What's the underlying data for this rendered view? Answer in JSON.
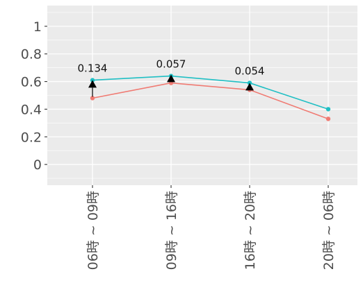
{
  "chart_data": {
    "type": "line",
    "categories": [
      "06時 ~ 09時",
      "09時 ~ 16時",
      "16時 ~ 20時",
      "20時 ~ 06時"
    ],
    "series": [
      {
        "values": [
          0.61,
          0.64,
          0.59,
          0.4
        ],
        "color": "#1fbfc4"
      },
      {
        "values": [
          0.48,
          0.59,
          0.54,
          0.33
        ],
        "color": "#f07a72"
      }
    ],
    "annotations": [
      {
        "category": "06時 ~ 09時",
        "label": "0.134",
        "marker_y": 0.58
      },
      {
        "category": "09時 ~ 16時",
        "label": "0.057",
        "marker_y": 0.62
      },
      {
        "category": "16時 ~ 20時",
        "label": "0.054",
        "marker_y": 0.56
      }
    ],
    "y_ticks": [
      "0",
      "0.2",
      "0.4",
      "0.6",
      "0.8",
      "1"
    ],
    "ylim": [
      -0.15,
      1.15
    ],
    "xlabel": "",
    "ylabel": "",
    "grid": true,
    "panel_color": "#ebebeb"
  }
}
